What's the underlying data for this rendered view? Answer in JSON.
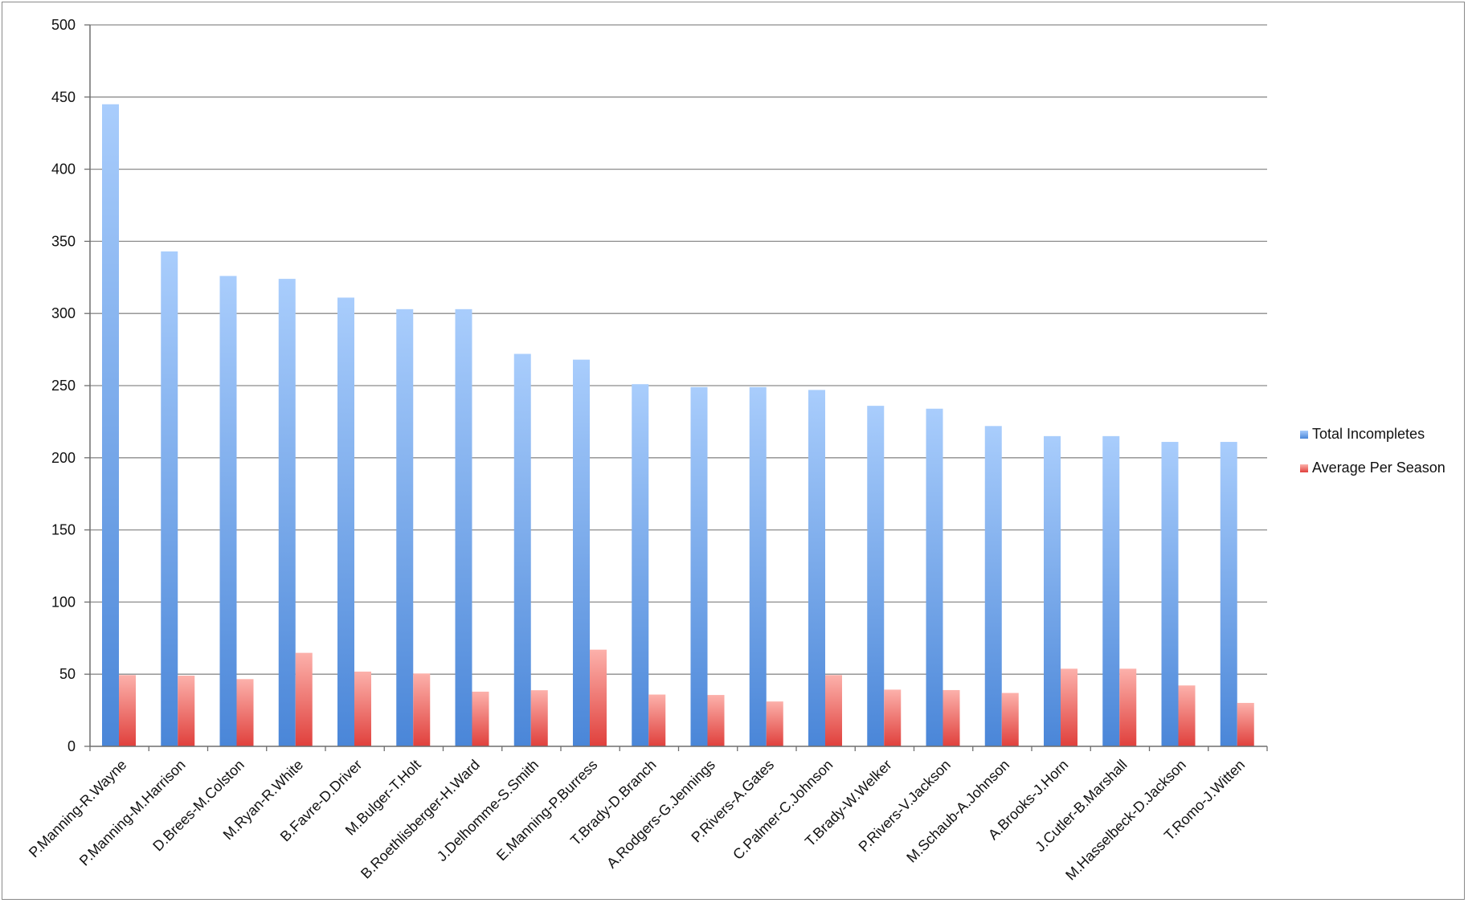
{
  "chart_data": {
    "type": "bar",
    "title": "",
    "xlabel": "",
    "ylabel": "",
    "ylim": [
      0,
      500
    ],
    "yticks": [
      0,
      50,
      100,
      150,
      200,
      250,
      300,
      350,
      400,
      450,
      500
    ],
    "grid": "horizontal",
    "legend_position": "right",
    "categories": [
      "P.Manning-R.Wayne",
      "P.Manning-M.Harrison",
      "D.Brees-M.Colston",
      "M.Ryan-R.White",
      "B.Favre-D.Driver",
      "M.Bulger-T.Holt",
      "B.Roethlisberger-H.Ward",
      "J.Delhomme-S.Smith",
      "E.Manning-P.Burress",
      "T.Brady-D.Branch",
      "A.Rodgers-G.Jennings",
      "P.Rivers-A.Gates",
      "C.Palmer-C.Johnson",
      "T.Brady-W.Welker",
      "P.Rivers-V.Jackson",
      "M.Schaub-A.Johnson",
      "A.Brooks-J.Horn",
      "J.Cutler-B.Marshall",
      "M.Hasselbeck-D.Jackson",
      "T.Romo-J.Witten"
    ],
    "series": [
      {
        "name": "Total Incompletes",
        "color": "#4a86d8",
        "color_light": "#a9cdfc",
        "values": [
          445,
          343,
          326,
          324,
          311,
          303,
          303,
          272,
          268,
          251,
          249,
          249,
          247,
          236,
          234,
          222,
          215,
          215,
          211,
          211
        ]
      },
      {
        "name": "Average Per Season",
        "color": "#e0403c",
        "color_light": "#fcb1ab",
        "values": [
          49.4,
          49,
          46.6,
          64.8,
          51.8,
          50.5,
          37.9,
          38.9,
          67,
          35.9,
          35.6,
          31.1,
          49.4,
          39.3,
          39,
          37,
          53.8,
          53.8,
          42.2,
          30.1
        ]
      }
    ]
  }
}
